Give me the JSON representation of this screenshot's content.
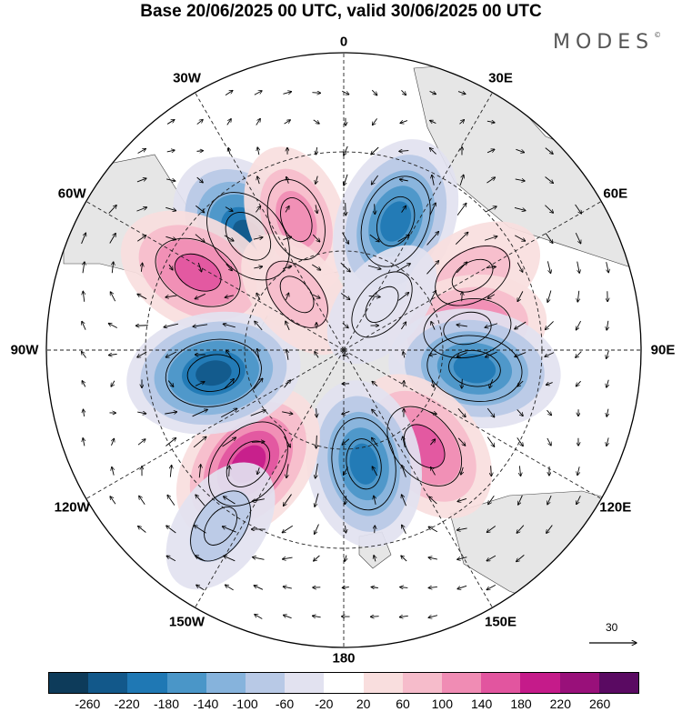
{
  "title": "Base 20/06/2025 00 UTC, valid 30/06/2025 00 UTC",
  "brand": "MODES",
  "brand_mark": "©",
  "longitude_labels": [
    {
      "text": "0",
      "angle": 0
    },
    {
      "text": "30E",
      "angle": 30
    },
    {
      "text": "60E",
      "angle": 60
    },
    {
      "text": "90E",
      "angle": 90
    },
    {
      "text": "120E",
      "angle": 120
    },
    {
      "text": "150E",
      "angle": 150
    },
    {
      "text": "180",
      "angle": 180
    },
    {
      "text": "150W",
      "angle": 210
    },
    {
      "text": "120W",
      "angle": 240
    },
    {
      "text": "90W",
      "angle": 270
    },
    {
      "text": "60W",
      "angle": 300
    },
    {
      "text": "30W",
      "angle": 330
    }
  ],
  "reference_vector": "30",
  "colorbar": {
    "colors": [
      "#0d3b5a",
      "#12588a",
      "#1f78b4",
      "#4a96c8",
      "#86b3dc",
      "#b8c9e6",
      "#e2e2f0",
      "#ffffff",
      "#f9dede",
      "#f6bccb",
      "#f08cb4",
      "#e2559f",
      "#c51b8a",
      "#99107a",
      "#5a0a62"
    ],
    "ticks": [
      "-260",
      "-220",
      "-180",
      "-140",
      "-100",
      "-60",
      "-20",
      "20",
      "60",
      "100",
      "140",
      "180",
      "220",
      "260"
    ]
  },
  "colors": {
    "land": "#e6e6e6",
    "grid": "#222222",
    "coast": "#444444"
  },
  "anomaly_centers": [
    {
      "lon": -40,
      "lat": -45,
      "value": -240
    },
    {
      "lon": -62,
      "lat": -40,
      "value": 170
    },
    {
      "lon": -20,
      "lat": -48,
      "value": 110
    },
    {
      "lon": 22,
      "lat": -48,
      "value": -200
    },
    {
      "lon": 60,
      "lat": -45,
      "value": 90
    },
    {
      "lon": 80,
      "lat": -52,
      "value": 150
    },
    {
      "lon": 98,
      "lat": -50,
      "value": -210
    },
    {
      "lon": 140,
      "lat": -52,
      "value": 170
    },
    {
      "lon": 170,
      "lat": -55,
      "value": -190
    },
    {
      "lon": -140,
      "lat": -45,
      "value": 210
    },
    {
      "lon": -100,
      "lat": -50,
      "value": -220
    },
    {
      "lon": -145,
      "lat": -25,
      "value": -70
    },
    {
      "lon": -40,
      "lat": -68,
      "value": 60
    },
    {
      "lon": 40,
      "lat": -72,
      "value": -50
    }
  ]
}
